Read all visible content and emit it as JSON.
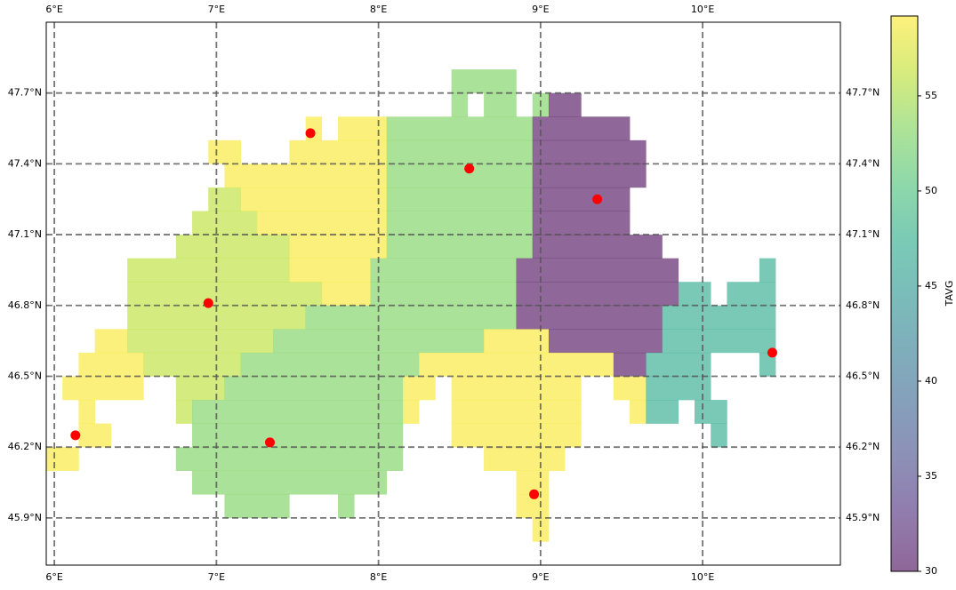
{
  "chart_data": {
    "type": "raster-map",
    "cmap": "viridis",
    "alpha": 0.6,
    "xlim": [
      5.95,
      10.85
    ],
    "ylim": [
      45.7,
      48.0
    ],
    "xticks": [
      {
        "value": 6,
        "label": "6°E"
      },
      {
        "value": 7,
        "label": "7°E"
      },
      {
        "value": 8,
        "label": "8°E"
      },
      {
        "value": 9,
        "label": "9°E"
      },
      {
        "value": 10,
        "label": "10°E"
      }
    ],
    "yticks": [
      {
        "value": 45.9,
        "label": "45.9°N"
      },
      {
        "value": 46.2,
        "label": "46.2°N"
      },
      {
        "value": 46.5,
        "label": "46.5°N"
      },
      {
        "value": 46.8,
        "label": "46.8°N"
      },
      {
        "value": 47.1,
        "label": "47.1°N"
      },
      {
        "value": 47.4,
        "label": "47.4°N"
      },
      {
        "value": 47.7,
        "label": "47.7°N"
      }
    ],
    "grid": true,
    "colorbar": {
      "label": "TAVG",
      "lim": [
        30,
        59.2
      ],
      "ticks": [
        30,
        35,
        40,
        45,
        50,
        55
      ]
    },
    "raster": [
      {
        "lat": [
          47.7,
          47.8
        ],
        "runs": [
          [
            8.45,
            8.85,
            53
          ]
        ]
      },
      {
        "lat": [
          47.6,
          47.7
        ],
        "runs": [
          [
            8.45,
            8.55,
            53
          ],
          [
            8.65,
            8.85,
            53
          ],
          [
            8.95,
            9.05,
            53
          ],
          [
            9.05,
            9.25,
            30
          ]
        ]
      },
      {
        "lat": [
          47.5,
          47.6
        ],
        "runs": [
          [
            7.55,
            7.65,
            59
          ],
          [
            7.75,
            8.05,
            59
          ],
          [
            8.05,
            8.95,
            53
          ],
          [
            8.95,
            9.55,
            30
          ]
        ]
      },
      {
        "lat": [
          47.4,
          47.5
        ],
        "runs": [
          [
            6.95,
            7.15,
            59
          ],
          [
            7.45,
            8.05,
            59
          ],
          [
            8.05,
            8.95,
            53
          ],
          [
            8.95,
            9.65,
            30
          ]
        ]
      },
      {
        "lat": [
          47.3,
          47.4
        ],
        "runs": [
          [
            7.05,
            8.05,
            59
          ],
          [
            8.05,
            8.95,
            53
          ],
          [
            8.95,
            9.65,
            30
          ]
        ]
      },
      {
        "lat": [
          47.2,
          47.3
        ],
        "runs": [
          [
            6.95,
            7.15,
            56
          ],
          [
            7.15,
            8.05,
            59
          ],
          [
            8.05,
            8.95,
            53
          ],
          [
            8.95,
            9.55,
            30
          ]
        ]
      },
      {
        "lat": [
          47.1,
          47.2
        ],
        "runs": [
          [
            6.85,
            7.25,
            56
          ],
          [
            7.25,
            8.05,
            59
          ],
          [
            8.05,
            8.95,
            53
          ],
          [
            8.95,
            9.55,
            30
          ]
        ]
      },
      {
        "lat": [
          47.0,
          47.1
        ],
        "runs": [
          [
            6.75,
            7.45,
            56
          ],
          [
            7.45,
            8.05,
            59
          ],
          [
            8.05,
            8.95,
            53
          ],
          [
            8.95,
            9.75,
            30
          ]
        ]
      },
      {
        "lat": [
          46.9,
          47.0
        ],
        "runs": [
          [
            6.45,
            7.45,
            56
          ],
          [
            7.45,
            7.95,
            59
          ],
          [
            7.95,
            8.85,
            53
          ],
          [
            8.85,
            9.85,
            30
          ],
          [
            10.35,
            10.45,
            47
          ]
        ]
      },
      {
        "lat": [
          46.8,
          46.9
        ],
        "runs": [
          [
            6.45,
            7.65,
            56
          ],
          [
            7.65,
            7.95,
            59
          ],
          [
            7.95,
            8.85,
            53
          ],
          [
            8.85,
            9.85,
            30
          ],
          [
            9.85,
            10.05,
            47
          ],
          [
            10.15,
            10.45,
            47
          ]
        ]
      },
      {
        "lat": [
          46.7,
          46.8
        ],
        "runs": [
          [
            6.45,
            7.55,
            56
          ],
          [
            7.55,
            8.85,
            53
          ],
          [
            8.85,
            9.75,
            30
          ],
          [
            9.75,
            10.45,
            47
          ]
        ]
      },
      {
        "lat": [
          46.6,
          46.7
        ],
        "runs": [
          [
            6.25,
            6.45,
            59
          ],
          [
            6.45,
            7.35,
            56
          ],
          [
            7.35,
            8.65,
            53
          ],
          [
            8.65,
            9.05,
            59
          ],
          [
            9.05,
            9.75,
            30
          ],
          [
            9.75,
            10.45,
            47
          ]
        ]
      },
      {
        "lat": [
          46.5,
          46.6
        ],
        "runs": [
          [
            6.15,
            6.55,
            59
          ],
          [
            6.55,
            7.15,
            56
          ],
          [
            7.15,
            8.25,
            53
          ],
          [
            8.25,
            9.45,
            59
          ],
          [
            9.45,
            9.65,
            30
          ],
          [
            9.65,
            10.05,
            47
          ],
          [
            10.35,
            10.45,
            47
          ]
        ]
      },
      {
        "lat": [
          46.4,
          46.5
        ],
        "runs": [
          [
            6.05,
            6.55,
            59
          ],
          [
            6.75,
            7.05,
            56
          ],
          [
            7.05,
            8.15,
            53
          ],
          [
            8.15,
            8.35,
            59
          ],
          [
            8.45,
            9.25,
            59
          ],
          [
            9.45,
            9.65,
            59
          ],
          [
            9.65,
            10.05,
            47
          ]
        ]
      },
      {
        "lat": [
          46.3,
          46.4
        ],
        "runs": [
          [
            6.15,
            6.25,
            59
          ],
          [
            6.75,
            6.85,
            56
          ],
          [
            6.85,
            8.15,
            53
          ],
          [
            8.15,
            8.25,
            59
          ],
          [
            8.45,
            9.25,
            59
          ],
          [
            9.55,
            9.65,
            59
          ],
          [
            9.65,
            9.85,
            47
          ],
          [
            9.95,
            10.15,
            47
          ]
        ]
      },
      {
        "lat": [
          46.2,
          46.3
        ],
        "runs": [
          [
            6.15,
            6.35,
            59
          ],
          [
            6.85,
            8.15,
            53
          ],
          [
            8.45,
            9.25,
            59
          ],
          [
            10.05,
            10.15,
            47
          ]
        ]
      },
      {
        "lat": [
          46.1,
          46.2
        ],
        "runs": [
          [
            5.95,
            6.15,
            59
          ],
          [
            6.75,
            8.15,
            53
          ],
          [
            8.65,
            9.15,
            59
          ]
        ]
      },
      {
        "lat": [
          46.0,
          46.1
        ],
        "runs": [
          [
            6.85,
            8.05,
            53
          ],
          [
            8.85,
            9.05,
            59
          ]
        ]
      },
      {
        "lat": [
          45.9,
          46.0
        ],
        "runs": [
          [
            7.05,
            7.45,
            53
          ],
          [
            7.75,
            7.85,
            53
          ],
          [
            8.85,
            9.05,
            59
          ]
        ]
      },
      {
        "lat": [
          45.8,
          45.9
        ],
        "runs": [
          [
            8.95,
            9.05,
            59
          ]
        ]
      }
    ],
    "stations": {
      "color": "#ff0000",
      "lon": [
        7.58,
        8.56,
        9.35,
        6.95,
        10.43,
        6.13,
        7.33,
        8.96
      ],
      "lat": [
        47.53,
        47.38,
        47.25,
        46.81,
        46.6,
        46.25,
        46.22,
        46.0
      ]
    }
  }
}
